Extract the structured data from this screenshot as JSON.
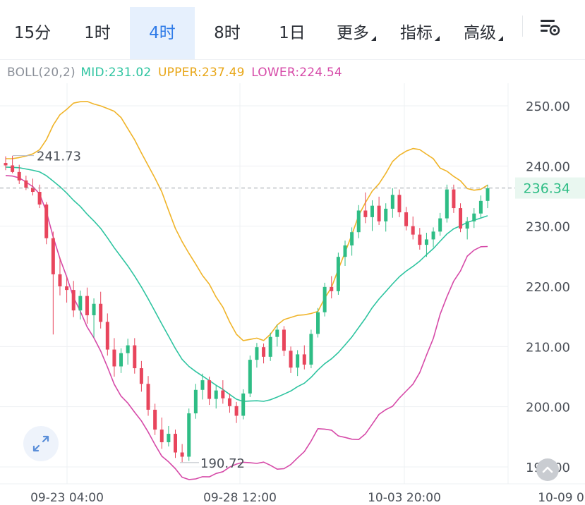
{
  "tabs": [
    {
      "label": "15分",
      "dropdown": false
    },
    {
      "label": "1时",
      "dropdown": false
    },
    {
      "label": "4时",
      "dropdown": false,
      "active": true
    },
    {
      "label": "8时",
      "dropdown": false
    },
    {
      "label": "1日",
      "dropdown": false
    },
    {
      "label": "更多",
      "dropdown": true
    },
    {
      "label": "指标",
      "dropdown": true
    },
    {
      "label": "高级",
      "dropdown": true
    }
  ],
  "settings_icon": "chart-settings-icon",
  "legend": {
    "name": "BOLL(20,2)",
    "mid_label": "MID:",
    "mid": "231.02",
    "upper_label": "UPPER:",
    "upper": "237.49",
    "lower_label": "LOWER:",
    "lower": "224.54"
  },
  "colors": {
    "up": "#2ebd85",
    "down": "#e8455c",
    "mid": "#2ec4a0",
    "upper": "#f0b429",
    "lower": "#d64aa8",
    "grid": "#eef0f3",
    "text": "#6b7280",
    "tab_active": "#2f7be8",
    "last_price": "#2ebd85"
  },
  "chart_data": {
    "type": "candlestick",
    "indicator": "BOLL(20,2)",
    "y_axis": {
      "ticks": [
        "250.00",
        "240.00",
        "230.00",
        "220.00",
        "210.00",
        "200.00",
        "190.00"
      ],
      "tick_values": [
        250,
        240,
        230,
        220,
        210,
        200,
        190
      ],
      "range": [
        189,
        258
      ]
    },
    "x_axis": {
      "labels": [
        "09-23 04:00",
        "09-28 12:00",
        "10-03 20:00",
        "10-09 0"
      ]
    },
    "last_price": 236.34,
    "last_price_label": "236.34",
    "annotations": {
      "high": 241.73,
      "high_label": "241.73",
      "low": 190.72,
      "low_label": "190.72"
    },
    "candles": [
      [
        240.5,
        241.6,
        239.3,
        240.1
      ],
      [
        240.1,
        241.7,
        238.8,
        239.0
      ],
      [
        239.0,
        240.2,
        237.0,
        237.6
      ],
      [
        237.6,
        238.4,
        236.0,
        236.4
      ],
      [
        236.4,
        237.9,
        235.1,
        235.7
      ],
      [
        235.7,
        236.9,
        233.0,
        233.6
      ],
      [
        233.6,
        234.0,
        227.0,
        228.0
      ],
      [
        228.0,
        229.1,
        212.0,
        222.0
      ],
      [
        222.0,
        224.8,
        218.5,
        220.0
      ],
      [
        220.0,
        221.6,
        217.3,
        219.4
      ],
      [
        219.4,
        220.9,
        214.9,
        216.0
      ],
      [
        216.0,
        219.3,
        214.5,
        218.4
      ],
      [
        218.4,
        219.8,
        213.8,
        215.2
      ],
      [
        215.2,
        218.0,
        211.5,
        217.1
      ],
      [
        217.1,
        219.1,
        213.0,
        214.1
      ],
      [
        214.1,
        215.5,
        208.5,
        209.5
      ],
      [
        209.5,
        211.4,
        205.0,
        206.7
      ],
      [
        206.7,
        209.7,
        205.6,
        208.9
      ],
      [
        208.9,
        211.3,
        207.0,
        210.2
      ],
      [
        210.2,
        211.4,
        205.5,
        206.4
      ],
      [
        206.4,
        207.6,
        202.5,
        203.8
      ],
      [
        203.8,
        205.1,
        198.5,
        199.5
      ],
      [
        199.5,
        200.5,
        195.3,
        196.2
      ],
      [
        196.2,
        198.2,
        193.0,
        194.1
      ],
      [
        194.1,
        196.8,
        193.4,
        195.5
      ],
      [
        195.5,
        196.2,
        191.5,
        192.4
      ],
      [
        192.4,
        193.8,
        190.8,
        191.7
      ],
      [
        191.7,
        199.7,
        191.0,
        198.9
      ],
      [
        198.9,
        203.8,
        198.0,
        202.8
      ],
      [
        202.8,
        205.5,
        201.2,
        204.4
      ],
      [
        204.4,
        205.0,
        200.3,
        201.3
      ],
      [
        201.3,
        203.5,
        199.7,
        202.7
      ],
      [
        202.7,
        204.4,
        200.5,
        201.4
      ],
      [
        201.4,
        202.2,
        199.0,
        200.1
      ],
      [
        200.1,
        200.8,
        197.3,
        198.5
      ],
      [
        198.5,
        202.9,
        197.9,
        202.2
      ],
      [
        202.2,
        208.5,
        201.6,
        207.8
      ],
      [
        207.8,
        210.6,
        206.5,
        209.9
      ],
      [
        209.9,
        210.5,
        207.2,
        208.3
      ],
      [
        208.3,
        212.3,
        207.6,
        211.6
      ],
      [
        211.6,
        213.6,
        210.0,
        212.8
      ],
      [
        212.8,
        213.4,
        208.4,
        209.3
      ],
      [
        209.3,
        210.0,
        205.6,
        206.5
      ],
      [
        206.5,
        209.4,
        205.1,
        208.7
      ],
      [
        208.7,
        210.2,
        206.2,
        207.0
      ],
      [
        207.0,
        212.8,
        206.4,
        212.1
      ],
      [
        212.1,
        216.4,
        211.5,
        215.7
      ],
      [
        215.7,
        220.6,
        215.0,
        219.9
      ],
      [
        219.9,
        221.7,
        218.0,
        219.2
      ],
      [
        219.2,
        225.6,
        218.6,
        224.9
      ],
      [
        224.9,
        227.6,
        223.4,
        226.8
      ],
      [
        226.8,
        229.8,
        225.1,
        229.0
      ],
      [
        229.0,
        233.5,
        228.0,
        232.6
      ],
      [
        232.6,
        235.6,
        230.5,
        231.5
      ],
      [
        231.5,
        234.3,
        229.2,
        233.4
      ],
      [
        233.4,
        234.9,
        230.2,
        230.8
      ],
      [
        230.8,
        233.8,
        229.1,
        232.9
      ],
      [
        232.9,
        236.3,
        231.4,
        235.2
      ],
      [
        235.2,
        236.1,
        231.5,
        232.3
      ],
      [
        232.3,
        233.2,
        229.3,
        230.0
      ],
      [
        230.0,
        231.6,
        227.8,
        228.6
      ],
      [
        228.6,
        229.7,
        226.1,
        226.9
      ],
      [
        226.9,
        228.9,
        224.9,
        227.8
      ],
      [
        227.8,
        229.8,
        226.5,
        229.1
      ],
      [
        229.1,
        232.2,
        228.4,
        231.3
      ],
      [
        231.3,
        236.9,
        230.6,
        236.1
      ],
      [
        236.1,
        236.9,
        232.2,
        233.0
      ],
      [
        233.0,
        233.8,
        229.0,
        229.6
      ],
      [
        229.6,
        231.5,
        227.8,
        230.8
      ],
      [
        230.8,
        233.0,
        229.7,
        232.1
      ],
      [
        232.1,
        235.1,
        231.3,
        234.2
      ],
      [
        234.2,
        236.9,
        233.0,
        236.3
      ]
    ]
  }
}
